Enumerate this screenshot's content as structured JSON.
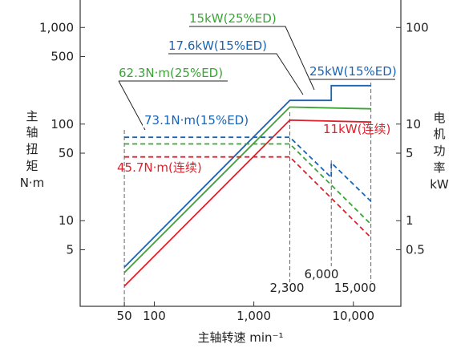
{
  "chart_data": {
    "type": "line",
    "xscale": "log",
    "yscale_left": "log",
    "yscale_right": "log",
    "xlim": [
      18,
      30000
    ],
    "ylim_left": [
      1.3,
      2000
    ],
    "ylim_right": [
      0.13,
      200
    ],
    "xlabel": "主轴转速 min⁻¹",
    "ylabel_left": [
      "主",
      "轴",
      "扭",
      "矩",
      "N·m"
    ],
    "ylabel_right": [
      "电",
      "机",
      "功",
      "率",
      "kW"
    ],
    "x_ticks": [
      {
        "value": 50,
        "label": "50"
      },
      {
        "value": 100,
        "label": "100"
      },
      {
        "value": 1000,
        "label": "1,000"
      },
      {
        "value": 10000,
        "label": "10,000"
      }
    ],
    "y_left_ticks": [
      {
        "value": 1000,
        "label": "1,000"
      },
      {
        "value": 500,
        "label": "500"
      },
      {
        "value": 100,
        "label": "100"
      },
      {
        "value": 50,
        "label": "50"
      },
      {
        "value": 10,
        "label": "10"
      },
      {
        "value": 5,
        "label": "5"
      }
    ],
    "y_right_ticks": [
      {
        "value": 100,
        "label": "100"
      },
      {
        "value": 10,
        "label": "10"
      },
      {
        "value": 5,
        "label": "5"
      },
      {
        "value": 1,
        "label": "1"
      },
      {
        "value": 0.5,
        "label": "0.5"
      }
    ],
    "ref_lines": [
      {
        "x": 50,
        "label": ""
      },
      {
        "x": 2300,
        "label": "2,300"
      },
      {
        "x": 6000,
        "label": "6,000"
      },
      {
        "x": 15000,
        "label": "15,000"
      }
    ],
    "series": [
      {
        "name": "25kW(15%ED)",
        "axis": "power",
        "style": "solid",
        "color": "#1a64b4",
        "points": [
          [
            50,
            0.33
          ],
          [
            2300,
            17.6
          ],
          [
            6000,
            17.6
          ],
          [
            6000,
            25
          ],
          [
            15000,
            25
          ]
        ]
      },
      {
        "name": "15kW(25%ED)",
        "axis": "power",
        "style": "solid",
        "color": "#3aa535",
        "points": [
          [
            50,
            0.29
          ],
          [
            2300,
            15
          ],
          [
            15000,
            14.4
          ]
        ]
      },
      {
        "name": "11kW(连续)",
        "axis": "power",
        "style": "solid",
        "color": "#e0202a",
        "points": [
          [
            50,
            0.21
          ],
          [
            2300,
            11
          ],
          [
            15000,
            10.5
          ]
        ]
      },
      {
        "name": "73.1N·m(15%ED)",
        "axis": "torque",
        "style": "dashed",
        "color": "#1a64b4",
        "points": [
          [
            50,
            73.1
          ],
          [
            2300,
            73.1
          ],
          [
            6000,
            28
          ],
          [
            6000,
            39.8
          ],
          [
            15000,
            15.9
          ]
        ]
      },
      {
        "name": "62.3N·m(25%ED)",
        "axis": "torque",
        "style": "dashed",
        "color": "#3aa535",
        "points": [
          [
            50,
            62.3
          ],
          [
            2300,
            62.3
          ],
          [
            15000,
            9.2
          ]
        ]
      },
      {
        "name": "45.7N·m(连续)",
        "axis": "torque",
        "style": "dashed",
        "color": "#e0202a",
        "points": [
          [
            50,
            45.7
          ],
          [
            2300,
            45.7
          ],
          [
            15000,
            6.7
          ]
        ]
      }
    ],
    "annotations": [
      {
        "text": "15kW(25%ED)",
        "color": "#3aa535"
      },
      {
        "text": "17.6kW(15%ED)",
        "color": "#1a64b4"
      },
      {
        "text": "25kW(15%ED)",
        "color": "#1a64b4"
      },
      {
        "text": "62.3N·m(25%ED)",
        "color": "#3aa535"
      },
      {
        "text": "73.1N·m(15%ED)",
        "color": "#1a64b4"
      },
      {
        "text": "11kW(连续)",
        "color": "#e0202a"
      },
      {
        "text": "45.7N·m(连续)",
        "color": "#e0202a"
      }
    ]
  }
}
